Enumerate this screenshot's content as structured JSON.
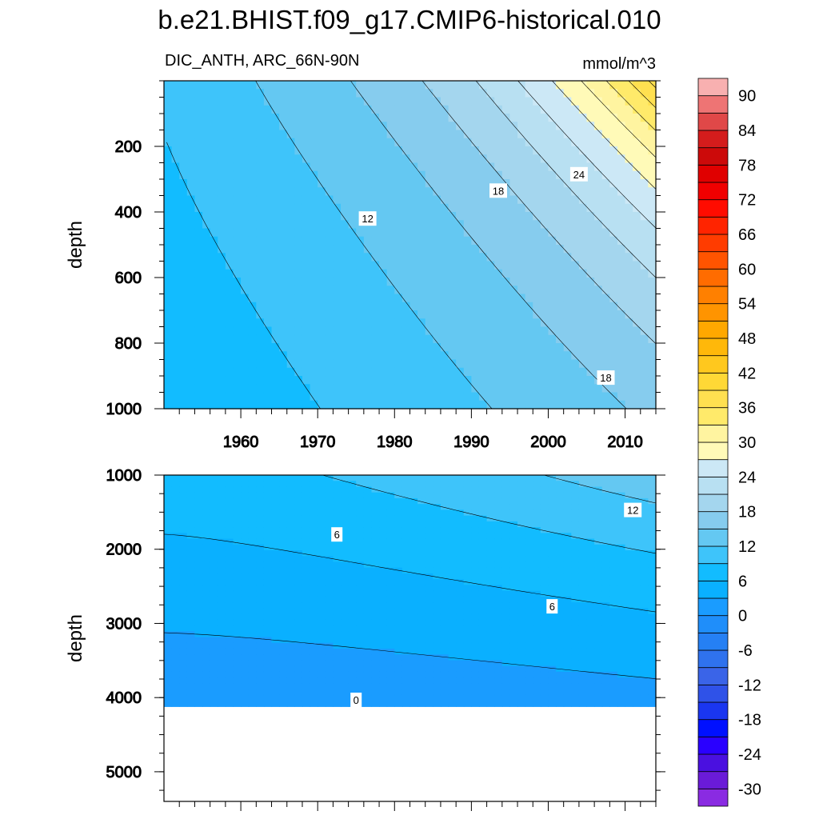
{
  "chart_data": {
    "type": "contour",
    "title": "b.e21.BHIST.f09_g17.CMIP6-historical.010",
    "left_subtitle": "DIC_ANTH, ARC_66N-90N",
    "right_subtitle": "mmol/m^3",
    "panels": [
      {
        "name": "upper",
        "ylabel": "depth",
        "xlim": [
          1950,
          2014
        ],
        "ylim": [
          0,
          1000
        ],
        "y_inverted": true,
        "xticks": [
          1960,
          1970,
          1980,
          1990,
          2000,
          2010
        ],
        "xtick_labels": [
          "1960",
          "1970",
          "1980",
          "1990",
          "2000",
          "2010"
        ],
        "yticks": [
          200,
          400,
          600,
          800,
          1000
        ],
        "ytick_labels": [
          "200",
          "400",
          "600",
          "800",
          "1000"
        ],
        "contour_interval": 3,
        "contour_labels": [
          {
            "text": "12",
            "year": 1976.5,
            "depth": 420
          },
          {
            "text": "18",
            "year": 1993.5,
            "depth": 335
          },
          {
            "text": "24",
            "year": 2004,
            "depth": 285
          },
          {
            "text": "18",
            "year": 2007.5,
            "depth": 905
          }
        ]
      },
      {
        "name": "lower",
        "ylabel": "depth",
        "xlim": [
          1950,
          2014
        ],
        "ylim": [
          1000,
          5400
        ],
        "y_inverted": true,
        "ocean_floor_depth": 4120,
        "xticks": [
          1960,
          1970,
          1980,
          1990,
          2000,
          2010
        ],
        "xtick_labels": [
          "",
          "",
          "",
          "",
          "",
          ""
        ],
        "yticks": [
          1000,
          2000,
          3000,
          4000,
          5000
        ],
        "ytick_labels": [
          "1000",
          "2000",
          "3000",
          "4000",
          "5000"
        ],
        "contour_interval": 3,
        "contour_labels": [
          {
            "text": "6",
            "year": 1972.5,
            "depth": 1800
          },
          {
            "text": "6",
            "year": 2000.5,
            "depth": 2770
          },
          {
            "text": "12",
            "year": 2011,
            "depth": 1470
          },
          {
            "text": "0",
            "year": 1975,
            "depth": 4030
          }
        ]
      }
    ],
    "colorbar": {
      "levels": [
        -33,
        -30,
        -27,
        -24,
        -21,
        -18,
        -15,
        -12,
        -9,
        -6,
        -3,
        0,
        3,
        6,
        9,
        12,
        15,
        18,
        21,
        24,
        27,
        30,
        33,
        36,
        39,
        42,
        45,
        48,
        51,
        54,
        57,
        60,
        63,
        66,
        69,
        72,
        75,
        78,
        81,
        84,
        87,
        90,
        93
      ],
      "labels": [
        "-30",
        "-24",
        "-18",
        "-12",
        "-6",
        "0",
        "6",
        "12",
        "18",
        "24",
        "30",
        "36",
        "42",
        "48",
        "54",
        "60",
        "66",
        "72",
        "78",
        "84",
        "90"
      ],
      "colors": [
        "#8a2be2",
        "#6a1bd8",
        "#4a10e0",
        "#2a00ff",
        "#0010ff",
        "#1a36f0",
        "#2f52e8",
        "#3a64e8",
        "#2f72ee",
        "#2580f4",
        "#1f8efa",
        "#1a9cff",
        "#0ab0ff",
        "#12bcff",
        "#3ec4fa",
        "#64c8f2",
        "#86ccee",
        "#a4d6ee",
        "#b8e0f2",
        "#cce8f6",
        "#fffab8",
        "#fff4a0",
        "#ffea6a",
        "#ffe050",
        "#ffd836",
        "#ffc81e",
        "#ffb80a",
        "#ffa800",
        "#ff9400",
        "#ff8000",
        "#ff6c00",
        "#ff5400",
        "#ff3c00",
        "#ff2400",
        "#ff0c00",
        "#f00000",
        "#e00000",
        "#cc0a0a",
        "#d41c1c",
        "#e04848",
        "#ee7474",
        "#f8b0b0"
      ]
    }
  }
}
